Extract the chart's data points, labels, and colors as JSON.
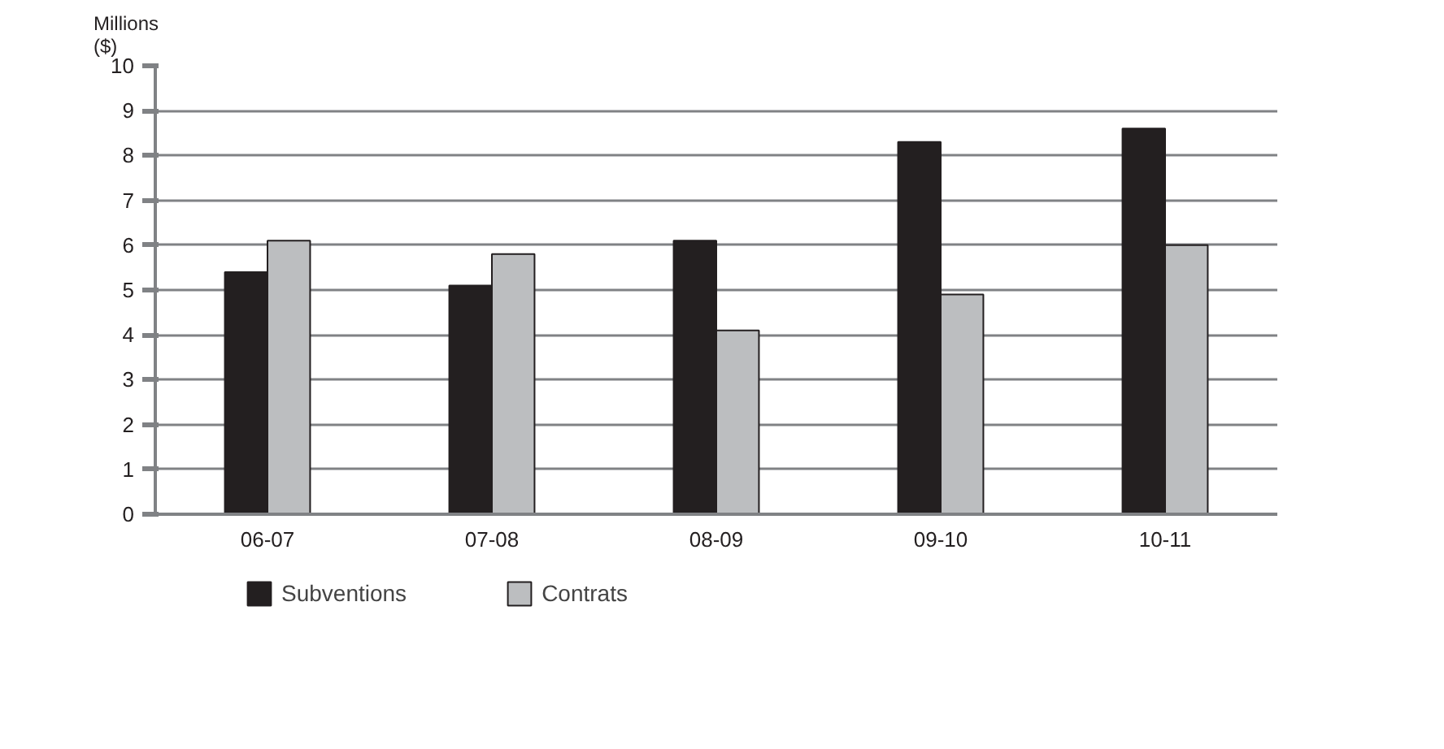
{
  "chart_data": {
    "type": "bar",
    "ylabel": "Millions\n($)",
    "categories": [
      "06-07",
      "07-08",
      "08-09",
      "09-10",
      "10-11"
    ],
    "series": [
      {
        "name": "Subventions",
        "color": "#231f20",
        "values": [
          5.4,
          5.1,
          6.1,
          8.3,
          8.6
        ]
      },
      {
        "name": "Contrats",
        "color": "#bcbec0",
        "values": [
          6.1,
          5.8,
          4.1,
          4.9,
          6.0
        ]
      }
    ],
    "ylim": [
      0,
      10
    ],
    "yticks": [
      0,
      1,
      2,
      3,
      4,
      5,
      6,
      7,
      8,
      9,
      10
    ],
    "grid": "y",
    "legend": "bottom left"
  }
}
